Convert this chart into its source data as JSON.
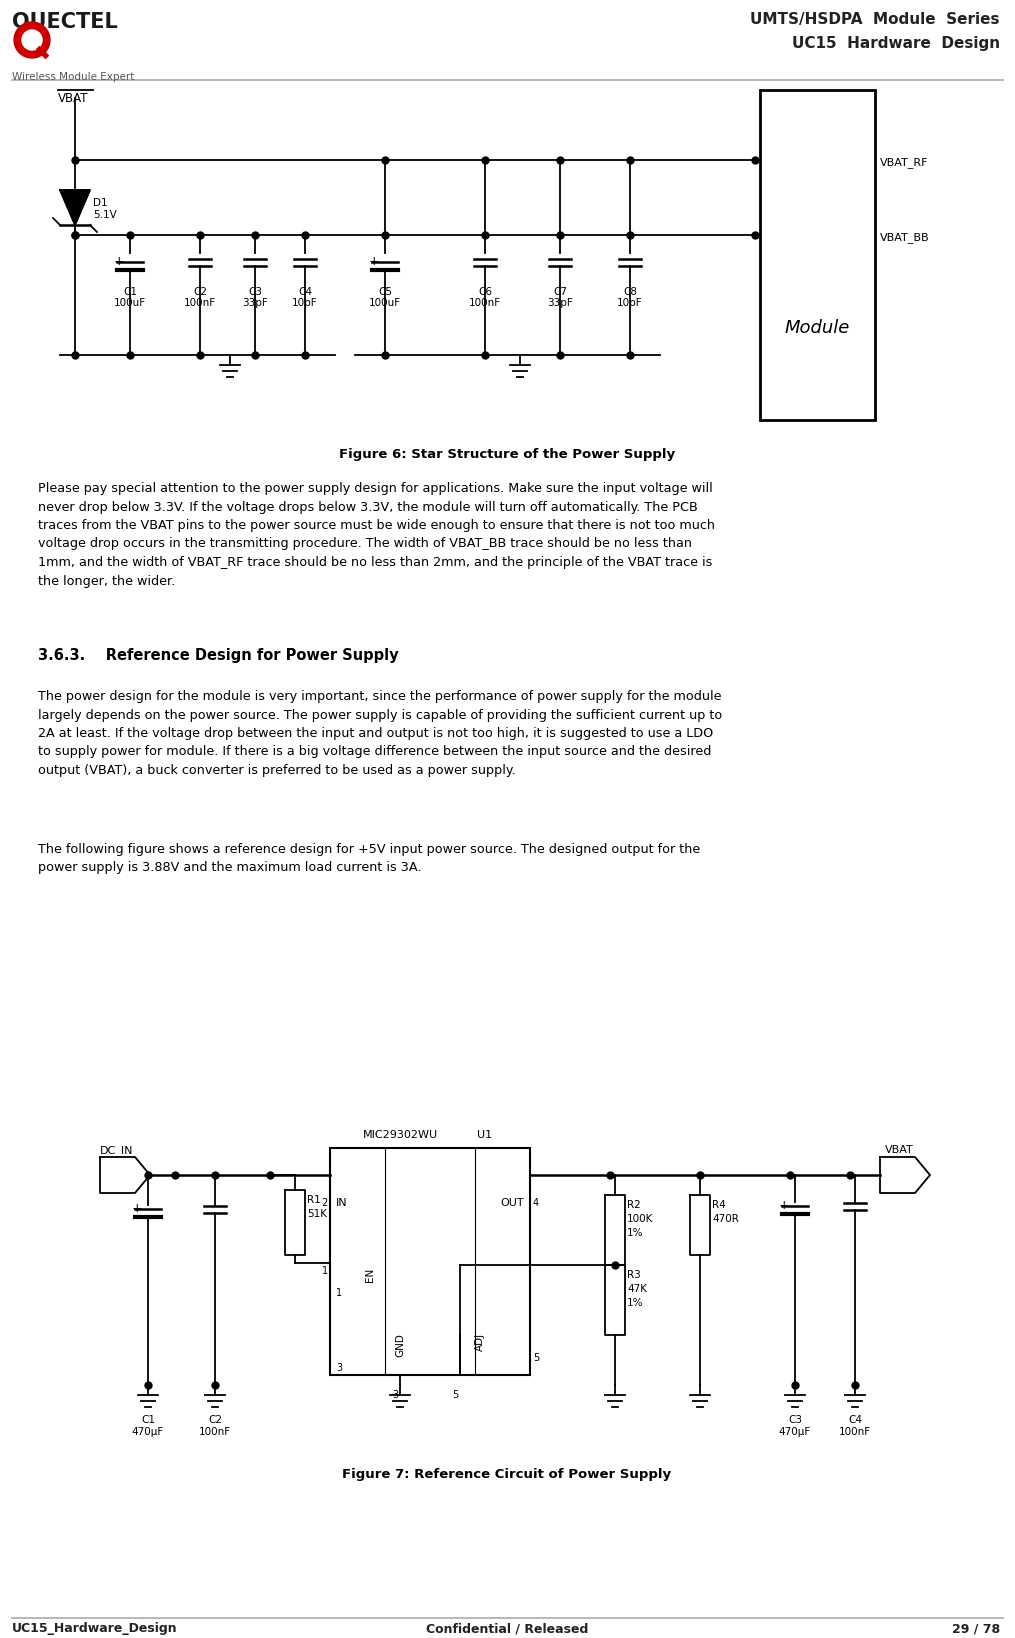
{
  "page_width": 10.15,
  "page_height": 16.38,
  "bg_color": "#ffffff",
  "header_right_line1": "UMTS/HSDPA  Module  Series",
  "header_right_line2": "UC15  Hardware  Design",
  "footer_left": "UC15_Hardware_Design",
  "footer_center": "Confidential / Released",
  "footer_right": "29 / 78",
  "fig6_caption": "Figure 6: Star Structure of the Power Supply",
  "fig7_caption": "Figure 7: Reference Circuit of Power Supply",
  "para1": "Please pay special attention to the power supply design for applications. Make sure the input voltage will\nnever drop below 3.3V. If the voltage drops below 3.3V, the module will turn off automatically. The PCB\ntraces from the VBAT pins to the power source must be wide enough to ensure that there is not too much\nvoltage drop occurs in the transmitting procedure. The width of VBAT_BB trace should be no less than\n1mm, and the width of VBAT_RF trace should be no less than 2mm, and the principle of the VBAT trace is\nthe longer, the wider.",
  "sec_heading": "3.6.3.    Reference Design for Power Supply",
  "para2": "The power design for the module is very important, since the performance of power supply for the module\nlargely depends on the power source. The power supply is capable of providing the sufficient current up to\n2A at least. If the voltage drop between the input and output is not too high, it is suggested to use a LDO\nto supply power for module. If there is a big voltage difference between the input source and the desired\noutput (VBAT), a buck converter is preferred to be used as a power supply.",
  "para3": "The following figure shows a reference design for +5V input power source. The designed output for the\npower supply is 3.88V and the maximum load current is 3A."
}
